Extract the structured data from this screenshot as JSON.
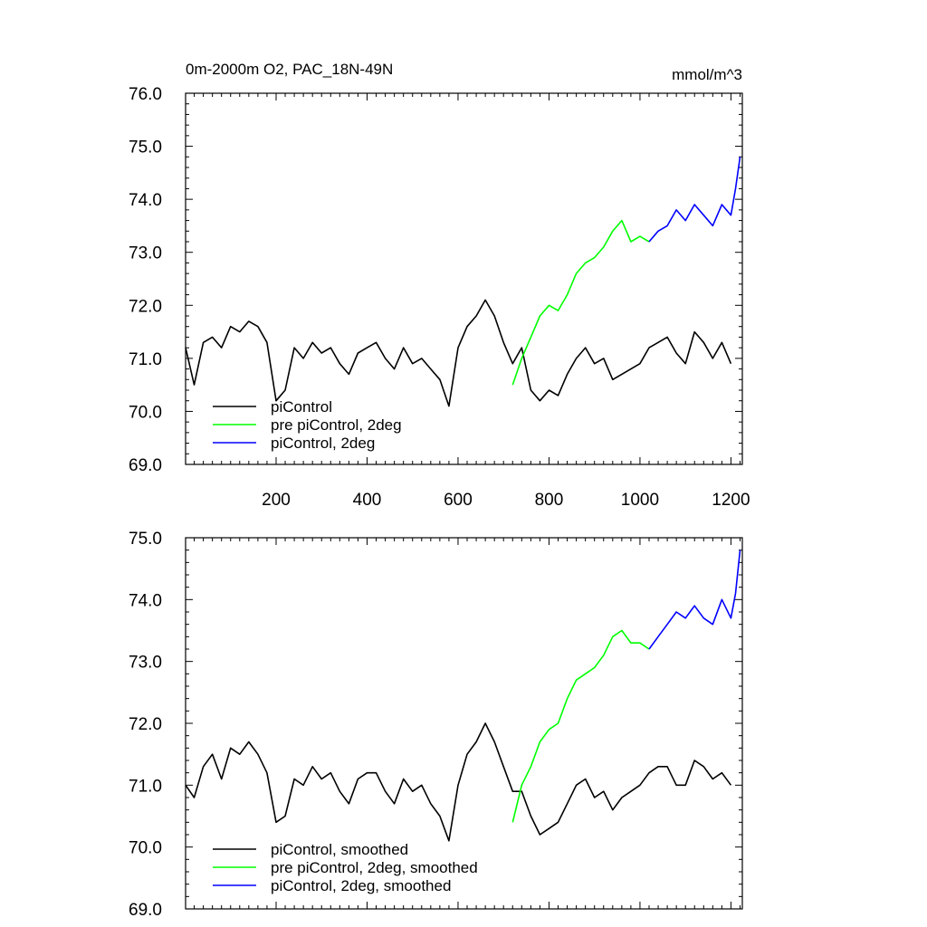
{
  "figure": {
    "title_left": "0m-2000m O2, PAC_18N-49N",
    "title_right": "mmol/m^3"
  },
  "chart_data": [
    {
      "type": "line",
      "title": "0m-2000m O2, PAC_18N-49N",
      "units": "mmol/m^3",
      "xlim": [
        1,
        1225
      ],
      "ylim": [
        69.0,
        76.0
      ],
      "x_ticks": [
        200,
        400,
        600,
        800,
        1000,
        1200
      ],
      "x_tick_labels": [
        "200",
        "400",
        "600",
        "800",
        "1000",
        "1200"
      ],
      "y_ticks": [
        69.0,
        70.0,
        71.0,
        72.0,
        73.0,
        74.0,
        75.0,
        76.0
      ],
      "y_tick_labels": [
        "69.0",
        "70.0",
        "71.0",
        "72.0",
        "73.0",
        "74.0",
        "75.0",
        "76.0"
      ],
      "legend_position": "bottom-left",
      "series": [
        {
          "name": "piControl",
          "color": "#000000",
          "x": [
            1,
            20,
            40,
            60,
            80,
            100,
            120,
            140,
            160,
            180,
            200,
            220,
            240,
            260,
            280,
            300,
            320,
            340,
            360,
            380,
            400,
            420,
            440,
            460,
            480,
            500,
            520,
            540,
            560,
            580,
            600,
            620,
            640,
            660,
            680,
            700,
            720,
            740,
            760,
            780,
            800,
            820,
            840,
            860,
            880,
            900,
            920,
            940,
            960,
            980,
            1000,
            1020,
            1040,
            1060,
            1080,
            1100,
            1120,
            1140,
            1160,
            1180,
            1200
          ],
          "y": [
            71.2,
            70.5,
            71.3,
            71.4,
            71.2,
            71.6,
            71.5,
            71.7,
            71.6,
            71.3,
            70.2,
            70.4,
            71.2,
            71.0,
            71.3,
            71.1,
            71.2,
            70.9,
            70.7,
            71.1,
            71.2,
            71.3,
            71.0,
            70.8,
            71.2,
            70.9,
            71.0,
            70.8,
            70.6,
            70.1,
            71.2,
            71.6,
            71.8,
            72.1,
            71.8,
            71.3,
            70.9,
            71.2,
            70.4,
            70.2,
            70.4,
            70.3,
            70.7,
            71.0,
            71.2,
            70.9,
            71.0,
            70.6,
            70.7,
            70.8,
            70.9,
            71.2,
            71.3,
            71.4,
            71.1,
            70.9,
            71.5,
            71.3,
            71.0,
            71.3,
            70.9
          ]
        },
        {
          "name": "pre piControl, 2deg",
          "color": "#00ff00",
          "x": [
            720,
            740,
            760,
            780,
            800,
            820,
            840,
            860,
            880,
            900,
            920,
            940,
            960,
            980,
            1000,
            1020
          ],
          "y": [
            70.5,
            71.0,
            71.4,
            71.8,
            72.0,
            71.9,
            72.2,
            72.6,
            72.8,
            72.9,
            73.1,
            73.4,
            73.6,
            73.2,
            73.3,
            73.2
          ]
        },
        {
          "name": "piControl, 2deg",
          "color": "#0000ff",
          "x": [
            1020,
            1040,
            1060,
            1080,
            1100,
            1120,
            1140,
            1160,
            1180,
            1200,
            1210,
            1220
          ],
          "y": [
            73.2,
            73.4,
            73.5,
            73.8,
            73.6,
            73.9,
            73.7,
            73.5,
            73.9,
            73.7,
            74.2,
            74.8
          ]
        }
      ]
    },
    {
      "type": "line",
      "xlim": [
        1,
        1225
      ],
      "ylim": [
        69.0,
        75.0
      ],
      "x_ticks": [
        200,
        400,
        600,
        800,
        1000,
        1200
      ],
      "y_ticks": [
        69.0,
        70.0,
        71.0,
        72.0,
        73.0,
        74.0,
        75.0
      ],
      "y_tick_labels": [
        "69.0",
        "70.0",
        "71.0",
        "72.0",
        "73.0",
        "74.0",
        "75.0"
      ],
      "legend_position": "bottom-left",
      "series": [
        {
          "name": "piControl, smoothed",
          "color": "#000000",
          "x": [
            1,
            20,
            40,
            60,
            80,
            100,
            120,
            140,
            160,
            180,
            200,
            220,
            240,
            260,
            280,
            300,
            320,
            340,
            360,
            380,
            400,
            420,
            440,
            460,
            480,
            500,
            520,
            540,
            560,
            580,
            600,
            620,
            640,
            660,
            680,
            700,
            720,
            740,
            760,
            780,
            800,
            820,
            840,
            860,
            880,
            900,
            920,
            940,
            960,
            980,
            1000,
            1020,
            1040,
            1060,
            1080,
            1100,
            1120,
            1140,
            1160,
            1180,
            1200
          ],
          "y": [
            71.0,
            70.8,
            71.3,
            71.5,
            71.1,
            71.6,
            71.5,
            71.7,
            71.5,
            71.2,
            70.4,
            70.5,
            71.1,
            71.0,
            71.3,
            71.1,
            71.2,
            70.9,
            70.7,
            71.1,
            71.2,
            71.2,
            70.9,
            70.7,
            71.1,
            70.9,
            71.0,
            70.7,
            70.5,
            70.1,
            71.0,
            71.5,
            71.7,
            72.0,
            71.7,
            71.3,
            70.9,
            70.9,
            70.5,
            70.2,
            70.3,
            70.4,
            70.7,
            71.0,
            71.1,
            70.8,
            70.9,
            70.6,
            70.8,
            70.9,
            71.0,
            71.2,
            71.3,
            71.3,
            71.0,
            71.0,
            71.4,
            71.3,
            71.1,
            71.2,
            71.0
          ]
        },
        {
          "name": "pre piControl, 2deg, smoothed",
          "color": "#00ff00",
          "x": [
            720,
            740,
            760,
            780,
            800,
            820,
            840,
            860,
            880,
            900,
            920,
            940,
            960,
            980,
            1000,
            1020
          ],
          "y": [
            70.4,
            71.0,
            71.3,
            71.7,
            71.9,
            72.0,
            72.4,
            72.7,
            72.8,
            72.9,
            73.1,
            73.4,
            73.5,
            73.3,
            73.3,
            73.2
          ]
        },
        {
          "name": "piControl, 2deg, smoothed",
          "color": "#0000ff",
          "x": [
            1020,
            1040,
            1060,
            1080,
            1100,
            1120,
            1140,
            1160,
            1180,
            1200,
            1210,
            1220
          ],
          "y": [
            73.2,
            73.4,
            73.6,
            73.8,
            73.7,
            73.9,
            73.7,
            73.6,
            74.0,
            73.7,
            74.1,
            74.8
          ]
        }
      ]
    }
  ]
}
